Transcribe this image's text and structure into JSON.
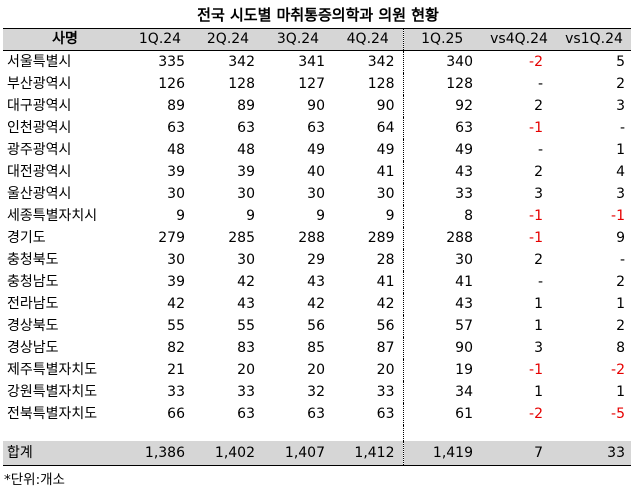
{
  "title": "전국 시도별 마취통증의학과 의원 현황",
  "headers": [
    "사명",
    "1Q.24",
    "2Q.24",
    "3Q.24",
    "4Q.24",
    "1Q.25",
    "vs4Q.24",
    "vs1Q.24"
  ],
  "colors": {
    "header_bg": "#d6d6d6",
    "negative": "#e60000"
  },
  "rows": [
    {
      "name": "서울특별시",
      "q1_24": "335",
      "q2_24": "342",
      "q3_24": "341",
      "q4_24": "342",
      "q1_25": "340",
      "vs4q": "-2",
      "vs1q": "5"
    },
    {
      "name": "부산광역시",
      "q1_24": "126",
      "q2_24": "128",
      "q3_24": "127",
      "q4_24": "128",
      "q1_25": "128",
      "vs4q": "-",
      "vs1q": "2"
    },
    {
      "name": "대구광역시",
      "q1_24": "89",
      "q2_24": "89",
      "q3_24": "90",
      "q4_24": "90",
      "q1_25": "92",
      "vs4q": "2",
      "vs1q": "3"
    },
    {
      "name": "인천광역시",
      "q1_24": "63",
      "q2_24": "63",
      "q3_24": "63",
      "q4_24": "64",
      "q1_25": "63",
      "vs4q": "-1",
      "vs1q": "-"
    },
    {
      "name": "광주광역시",
      "q1_24": "48",
      "q2_24": "48",
      "q3_24": "49",
      "q4_24": "49",
      "q1_25": "49",
      "vs4q": "-",
      "vs1q": "1"
    },
    {
      "name": "대전광역시",
      "q1_24": "39",
      "q2_24": "39",
      "q3_24": "40",
      "q4_24": "41",
      "q1_25": "43",
      "vs4q": "2",
      "vs1q": "4"
    },
    {
      "name": "울산광역시",
      "q1_24": "30",
      "q2_24": "30",
      "q3_24": "30",
      "q4_24": "30",
      "q1_25": "33",
      "vs4q": "3",
      "vs1q": "3"
    },
    {
      "name": "세종특별자치시",
      "q1_24": "9",
      "q2_24": "9",
      "q3_24": "9",
      "q4_24": "9",
      "q1_25": "8",
      "vs4q": "-1",
      "vs1q": "-1"
    },
    {
      "name": "경기도",
      "q1_24": "279",
      "q2_24": "285",
      "q3_24": "288",
      "q4_24": "289",
      "q1_25": "288",
      "vs4q": "-1",
      "vs1q": "9"
    },
    {
      "name": "충청북도",
      "q1_24": "30",
      "q2_24": "30",
      "q3_24": "29",
      "q4_24": "28",
      "q1_25": "30",
      "vs4q": "2",
      "vs1q": "-"
    },
    {
      "name": "충청남도",
      "q1_24": "39",
      "q2_24": "42",
      "q3_24": "43",
      "q4_24": "41",
      "q1_25": "41",
      "vs4q": "-",
      "vs1q": "2"
    },
    {
      "name": "전라남도",
      "q1_24": "42",
      "q2_24": "43",
      "q3_24": "42",
      "q4_24": "42",
      "q1_25": "43",
      "vs4q": "1",
      "vs1q": "1"
    },
    {
      "name": "경상북도",
      "q1_24": "55",
      "q2_24": "55",
      "q3_24": "56",
      "q4_24": "56",
      "q1_25": "57",
      "vs4q": "1",
      "vs1q": "2"
    },
    {
      "name": "경상남도",
      "q1_24": "82",
      "q2_24": "83",
      "q3_24": "85",
      "q4_24": "87",
      "q1_25": "90",
      "vs4q": "3",
      "vs1q": "8"
    },
    {
      "name": "제주특별자치도",
      "q1_24": "21",
      "q2_24": "20",
      "q3_24": "20",
      "q4_24": "20",
      "q1_25": "19",
      "vs4q": "-1",
      "vs1q": "-2"
    },
    {
      "name": "강원특별자치도",
      "q1_24": "33",
      "q2_24": "33",
      "q3_24": "32",
      "q4_24": "33",
      "q1_25": "34",
      "vs4q": "1",
      "vs1q": "1"
    },
    {
      "name": "전북특별자치도",
      "q1_24": "66",
      "q2_24": "63",
      "q3_24": "63",
      "q4_24": "63",
      "q1_25": "61",
      "vs4q": "-2",
      "vs1q": "-5"
    }
  ],
  "total": {
    "name": "합계",
    "q1_24": "1,386",
    "q2_24": "1,402",
    "q3_24": "1,407",
    "q4_24": "1,412",
    "q1_25": "1,419",
    "vs4q": "7",
    "vs1q": "33"
  },
  "note": "*단위:개소"
}
